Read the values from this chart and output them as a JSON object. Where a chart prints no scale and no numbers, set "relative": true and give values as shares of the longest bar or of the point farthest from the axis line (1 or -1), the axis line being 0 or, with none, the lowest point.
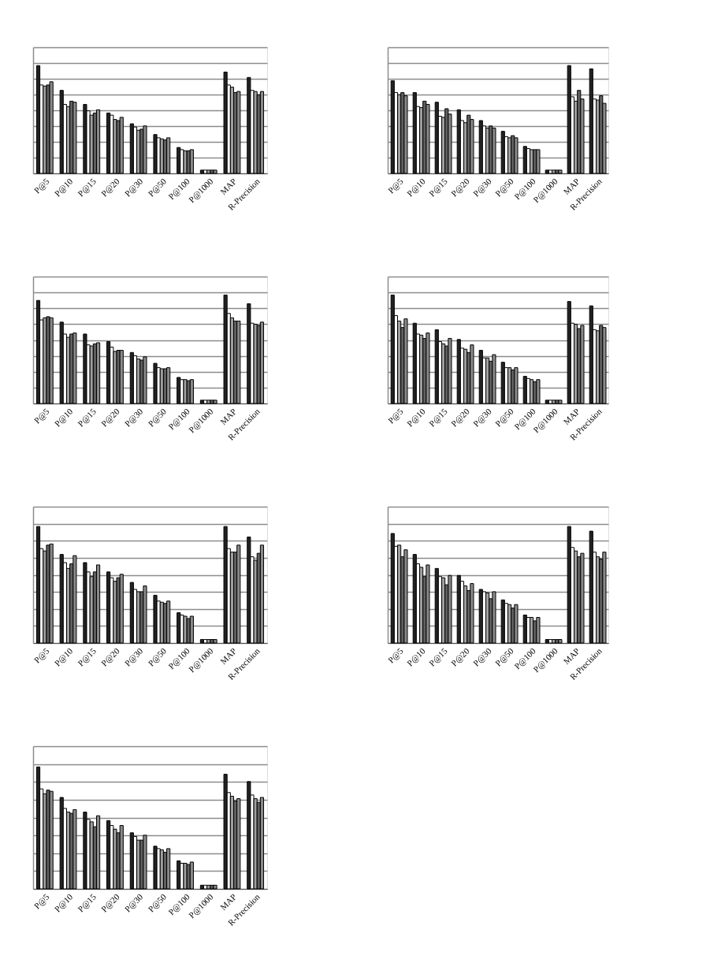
{
  "chart_data": [
    {
      "type": "bar",
      "relative": true,
      "grid": "y",
      "categories": [
        "P@5",
        "P@10",
        "P@15",
        "P@20",
        "P@30",
        "P@50",
        "P@100",
        "P@1000",
        "MAP",
        "R-Precision"
      ],
      "series": [
        {
          "color": "#222222",
          "values": [
            1.0,
            0.77,
            0.64,
            0.56,
            0.46,
            0.36,
            0.24,
            0.03,
            0.94,
            0.89
          ]
        },
        {
          "color": "#ffffff",
          "values": [
            0.82,
            0.64,
            0.58,
            0.54,
            0.43,
            0.33,
            0.22,
            0.03,
            0.82,
            0.77
          ]
        },
        {
          "color": "#a0a0a0",
          "values": [
            0.81,
            0.62,
            0.54,
            0.5,
            0.4,
            0.32,
            0.21,
            0.03,
            0.8,
            0.76
          ]
        },
        {
          "color": "#606060",
          "values": [
            0.82,
            0.67,
            0.56,
            0.49,
            0.41,
            0.31,
            0.21,
            0.03,
            0.75,
            0.73
          ]
        },
        {
          "color": "#8a8a8a",
          "values": [
            0.85,
            0.66,
            0.59,
            0.52,
            0.44,
            0.33,
            0.22,
            0.03,
            0.76,
            0.76
          ]
        }
      ]
    },
    {
      "type": "bar",
      "relative": true,
      "grid": "y",
      "categories": [
        "P@5",
        "P@10",
        "P@15",
        "P@20",
        "P@30",
        "P@50",
        "P@100",
        "P@1000",
        "MAP",
        "R-Precision"
      ],
      "series": [
        {
          "color": "#222222",
          "values": [
            0.86,
            0.75,
            0.66,
            0.59,
            0.49,
            0.39,
            0.25,
            0.03,
            1.0,
            0.97
          ]
        },
        {
          "color": "#ffffff",
          "values": [
            0.75,
            0.62,
            0.53,
            0.49,
            0.44,
            0.34,
            0.23,
            0.03,
            0.71,
            0.69
          ]
        },
        {
          "color": "#a0a0a0",
          "values": [
            0.73,
            0.61,
            0.52,
            0.47,
            0.42,
            0.33,
            0.22,
            0.03,
            0.67,
            0.68
          ]
        },
        {
          "color": "#606060",
          "values": [
            0.75,
            0.67,
            0.6,
            0.54,
            0.44,
            0.35,
            0.22,
            0.03,
            0.77,
            0.72
          ]
        },
        {
          "color": "#8a8a8a",
          "values": [
            0.72,
            0.64,
            0.55,
            0.5,
            0.42,
            0.33,
            0.22,
            0.03,
            0.69,
            0.65
          ]
        }
      ]
    },
    {
      "type": "bar",
      "relative": true,
      "grid": "y",
      "categories": [
        "P@5",
        "P@10",
        "P@15",
        "P@20",
        "P@30",
        "P@50",
        "P@100",
        "P@1000",
        "MAP",
        "R-Precision"
      ],
      "series": [
        {
          "color": "#222222",
          "values": [
            0.95,
            0.75,
            0.64,
            0.57,
            0.47,
            0.37,
            0.24,
            0.03,
            1.0,
            0.92
          ]
        },
        {
          "color": "#ffffff",
          "values": [
            0.77,
            0.64,
            0.54,
            0.52,
            0.44,
            0.33,
            0.22,
            0.03,
            0.83,
            0.74
          ]
        },
        {
          "color": "#a0a0a0",
          "values": [
            0.79,
            0.61,
            0.53,
            0.48,
            0.41,
            0.32,
            0.22,
            0.03,
            0.79,
            0.73
          ]
        },
        {
          "color": "#606060",
          "values": [
            0.8,
            0.64,
            0.55,
            0.49,
            0.4,
            0.32,
            0.21,
            0.03,
            0.76,
            0.72
          ]
        },
        {
          "color": "#8a8a8a",
          "values": [
            0.79,
            0.65,
            0.56,
            0.49,
            0.43,
            0.33,
            0.22,
            0.03,
            0.76,
            0.75
          ]
        }
      ]
    },
    {
      "type": "bar",
      "relative": true,
      "grid": "y",
      "categories": [
        "P@5",
        "P@10",
        "P@15",
        "P@20",
        "P@30",
        "P@50",
        "P@100",
        "P@1000",
        "MAP",
        "R-Precision"
      ],
      "series": [
        {
          "color": "#222222",
          "values": [
            1.0,
            0.74,
            0.68,
            0.59,
            0.49,
            0.38,
            0.25,
            0.03,
            0.94,
            0.9
          ]
        },
        {
          "color": "#ffffff",
          "values": [
            0.81,
            0.64,
            0.57,
            0.51,
            0.42,
            0.33,
            0.23,
            0.03,
            0.74,
            0.68
          ]
        },
        {
          "color": "#a0a0a0",
          "values": [
            0.76,
            0.63,
            0.55,
            0.5,
            0.42,
            0.33,
            0.22,
            0.03,
            0.73,
            0.67
          ]
        },
        {
          "color": "#606060",
          "values": [
            0.7,
            0.6,
            0.53,
            0.47,
            0.39,
            0.31,
            0.2,
            0.03,
            0.69,
            0.72
          ]
        },
        {
          "color": "#8a8a8a",
          "values": [
            0.78,
            0.65,
            0.6,
            0.54,
            0.45,
            0.33,
            0.22,
            0.03,
            0.72,
            0.7
          ]
        }
      ]
    },
    {
      "type": "bar",
      "relative": true,
      "grid": "y",
      "categories": [
        "P@5",
        "P@10",
        "P@15",
        "P@20",
        "P@30",
        "P@50",
        "P@100",
        "P@1000",
        "MAP",
        "R-Precision"
      ],
      "series": [
        {
          "color": "#222222",
          "values": [
            1.0,
            0.76,
            0.69,
            0.61,
            0.52,
            0.41,
            0.26,
            0.03,
            1.0,
            0.91
          ]
        },
        {
          "color": "#ffffff",
          "values": [
            0.81,
            0.69,
            0.61,
            0.56,
            0.46,
            0.36,
            0.24,
            0.03,
            0.81,
            0.74
          ]
        },
        {
          "color": "#a0a0a0",
          "values": [
            0.79,
            0.64,
            0.57,
            0.53,
            0.44,
            0.35,
            0.23,
            0.03,
            0.78,
            0.71
          ]
        },
        {
          "color": "#606060",
          "values": [
            0.84,
            0.68,
            0.61,
            0.56,
            0.44,
            0.34,
            0.21,
            0.03,
            0.78,
            0.77
          ]
        },
        {
          "color": "#8a8a8a",
          "values": [
            0.85,
            0.75,
            0.67,
            0.59,
            0.49,
            0.36,
            0.23,
            0.03,
            0.84,
            0.84
          ]
        }
      ]
    },
    {
      "type": "bar",
      "relative": true,
      "grid": "y",
      "categories": [
        "P@5",
        "P@10",
        "P@15",
        "P@20",
        "P@30",
        "P@50",
        "P@100",
        "P@1000",
        "MAP",
        "R-Precision"
      ],
      "series": [
        {
          "color": "#222222",
          "values": [
            0.94,
            0.76,
            0.64,
            0.58,
            0.46,
            0.37,
            0.24,
            0.03,
            1.0,
            0.96
          ]
        },
        {
          "color": "#ffffff",
          "values": [
            0.83,
            0.68,
            0.57,
            0.53,
            0.44,
            0.34,
            0.22,
            0.03,
            0.82,
            0.78
          ]
        },
        {
          "color": "#a0a0a0",
          "values": [
            0.84,
            0.65,
            0.56,
            0.49,
            0.43,
            0.33,
            0.22,
            0.03,
            0.79,
            0.74
          ]
        },
        {
          "color": "#606060",
          "values": [
            0.74,
            0.57,
            0.5,
            0.45,
            0.38,
            0.3,
            0.19,
            0.03,
            0.74,
            0.72
          ]
        },
        {
          "color": "#8a8a8a",
          "values": [
            0.8,
            0.67,
            0.58,
            0.51,
            0.44,
            0.33,
            0.22,
            0.03,
            0.77,
            0.78
          ]
        }
      ]
    },
    {
      "type": "bar",
      "relative": true,
      "grid": "y",
      "categories": [
        "P@5",
        "P@10",
        "P@15",
        "P@20",
        "P@30",
        "P@50",
        "P@100",
        "P@1000",
        "MAP",
        "R-Precision"
      ],
      "series": [
        {
          "color": "#222222",
          "values": [
            1.0,
            0.75,
            0.63,
            0.56,
            0.46,
            0.35,
            0.23,
            0.03,
            0.94,
            0.88
          ]
        },
        {
          "color": "#ffffff",
          "values": [
            0.82,
            0.66,
            0.57,
            0.52,
            0.43,
            0.33,
            0.21,
            0.03,
            0.79,
            0.77
          ]
        },
        {
          "color": "#a0a0a0",
          "values": [
            0.78,
            0.63,
            0.55,
            0.49,
            0.4,
            0.32,
            0.21,
            0.03,
            0.76,
            0.74
          ]
        },
        {
          "color": "#606060",
          "values": [
            0.81,
            0.62,
            0.51,
            0.46,
            0.4,
            0.3,
            0.2,
            0.03,
            0.72,
            0.71
          ]
        },
        {
          "color": "#8a8a8a",
          "values": [
            0.8,
            0.65,
            0.6,
            0.52,
            0.44,
            0.33,
            0.22,
            0.03,
            0.74,
            0.75
          ]
        }
      ]
    }
  ]
}
